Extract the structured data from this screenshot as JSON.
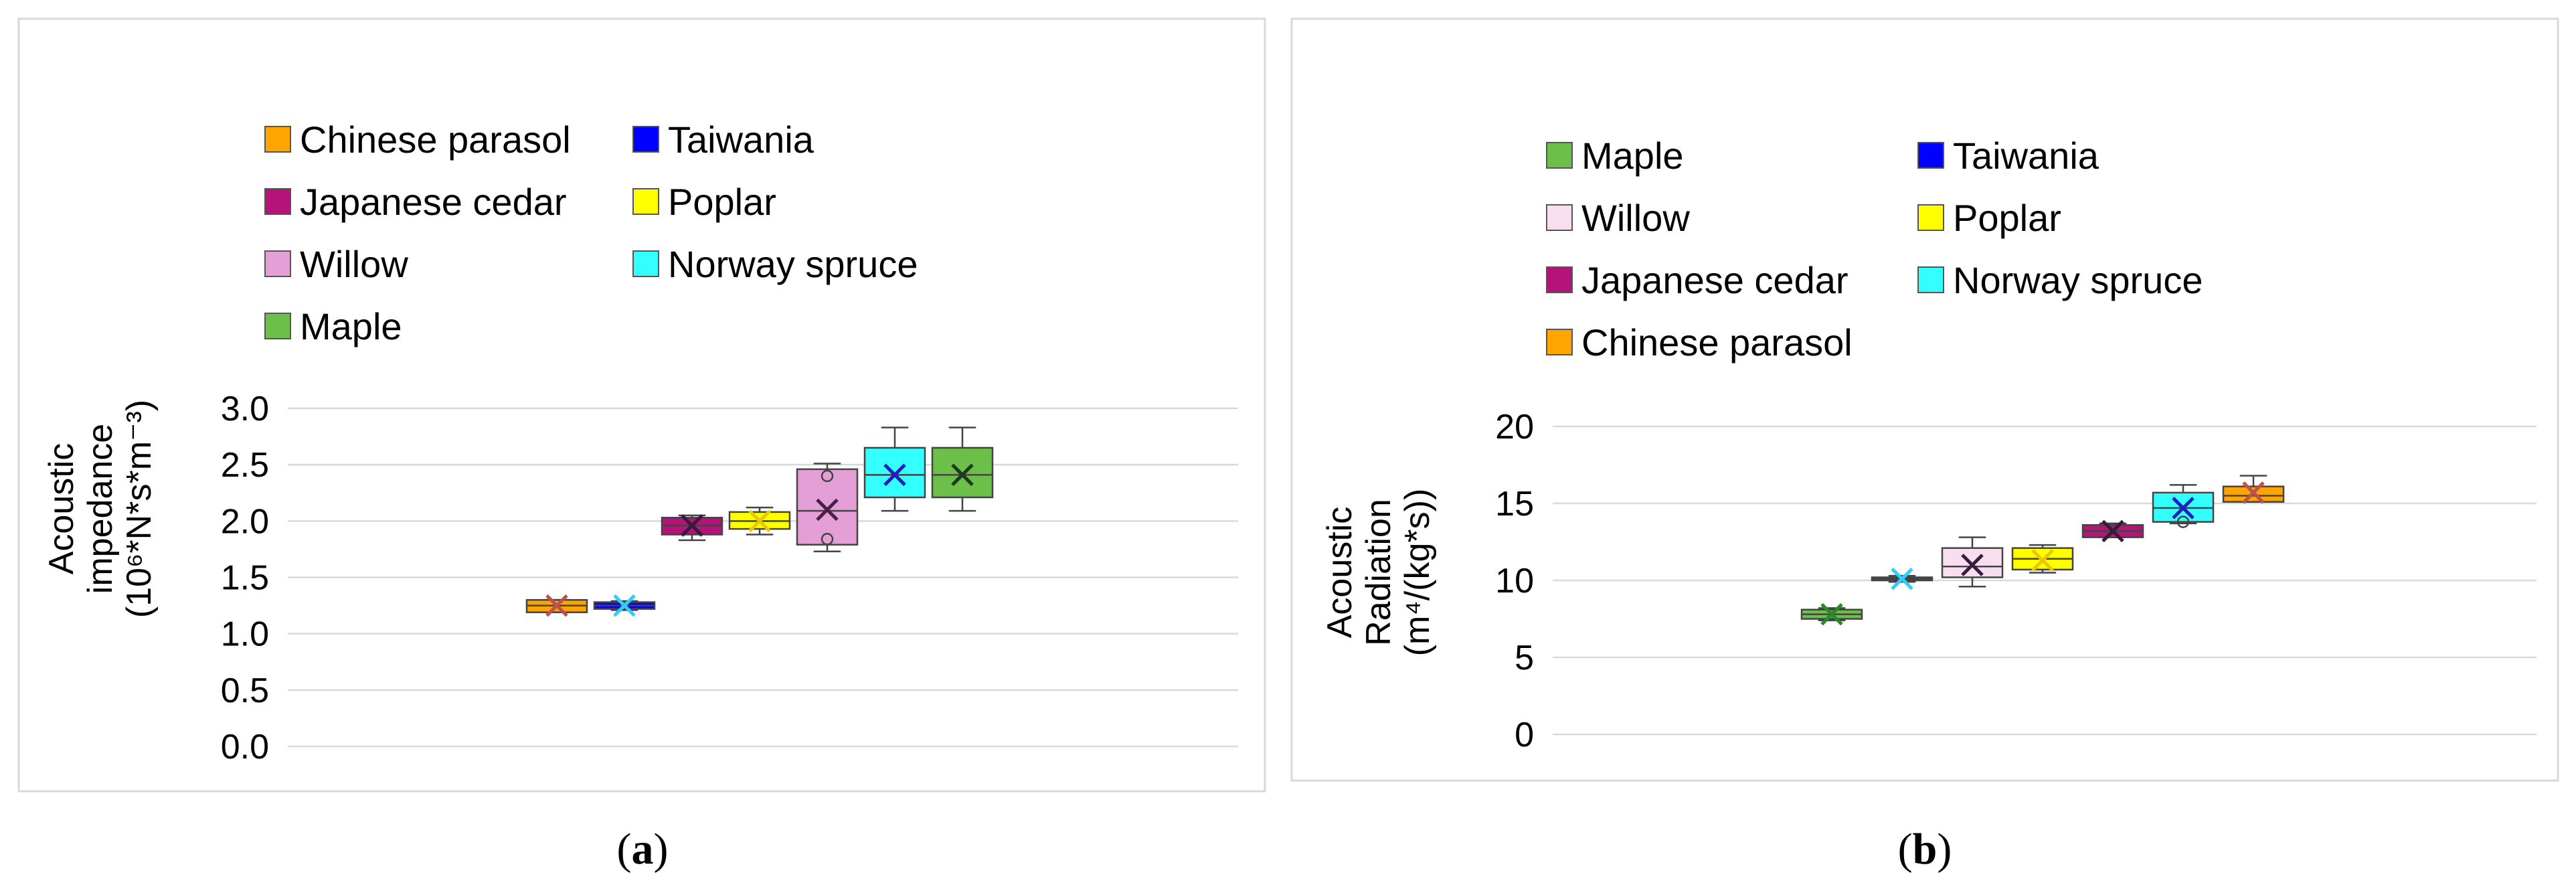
{
  "chart_data": [
    {
      "type": "box",
      "caption": "a",
      "ylabel": [
        "Acoustic",
        "impedance",
        "(10⁶*N*s*m⁻³)"
      ],
      "ylim": [
        0.0,
        3.0
      ],
      "yticks": [
        "0.0",
        "0.5",
        "1.0",
        "1.5",
        "2.0",
        "2.5",
        "3.0"
      ],
      "grid": true,
      "legend_position": "top",
      "legend": [
        {
          "name": "Chinese parasol",
          "color": "#ffa500"
        },
        {
          "name": "Taiwania",
          "color": "#0000ff"
        },
        {
          "name": "Japanese cedar",
          "color": "#b5127a"
        },
        {
          "name": "Poplar",
          "color": "#ffff00"
        },
        {
          "name": "Willow",
          "color": "#e39fd6"
        },
        {
          "name": "Norway spruce",
          "color": "#33ffff"
        },
        {
          "name": "Maple",
          "color": "#6cc04a"
        }
      ],
      "series": [
        {
          "name": "Chinese parasol",
          "color": "#ffa500",
          "mark": "#c0504d",
          "min": 1.19,
          "q1": 1.19,
          "median": 1.25,
          "q3": 1.3,
          "max": 1.3,
          "mean": 1.25,
          "outliers": []
        },
        {
          "name": "Taiwania",
          "color": "#0000ff",
          "mark": "#33ccff",
          "min": 1.21,
          "q1": 1.22,
          "median": 1.25,
          "q3": 1.28,
          "max": 1.29,
          "mean": 1.25,
          "outliers": []
        },
        {
          "name": "Japanese cedar",
          "color": "#b5127a",
          "mark": "#3a1a3a",
          "min": 1.83,
          "q1": 1.88,
          "median": 1.96,
          "q3": 2.03,
          "max": 2.05,
          "mean": 1.96,
          "outliers": []
        },
        {
          "name": "Poplar",
          "color": "#ffff00",
          "mark": "#e8c800",
          "min": 1.88,
          "q1": 1.93,
          "median": 2.0,
          "q3": 2.08,
          "max": 2.12,
          "mean": 2.0,
          "outliers": []
        },
        {
          "name": "Willow",
          "color": "#e39fd6",
          "mark": "#4a2048",
          "min": 1.73,
          "q1": 1.79,
          "median": 2.09,
          "q3": 2.46,
          "max": 2.51,
          "mean": 2.1,
          "outliers": [
            2.4,
            1.84
          ]
        },
        {
          "name": "Norway spruce",
          "color": "#33ffff",
          "mark": "#1f1fbf",
          "min": 2.09,
          "q1": 2.21,
          "median": 2.41,
          "q3": 2.65,
          "max": 2.83,
          "mean": 2.41,
          "outliers": []
        },
        {
          "name": "Maple",
          "color": "#6cc04a",
          "mark": "#1e3a1e",
          "min": 2.09,
          "q1": 2.21,
          "median": 2.41,
          "q3": 2.65,
          "max": 2.83,
          "mean": 2.41,
          "outliers": []
        }
      ]
    },
    {
      "type": "box",
      "caption": "b",
      "ylabel": [
        "Acoustic",
        "Radiation",
        "(m⁴/(kg*s))"
      ],
      "ylim": [
        0,
        20
      ],
      "yticks": [
        "0",
        "5",
        "10",
        "15",
        "20"
      ],
      "grid": true,
      "legend_position": "top",
      "legend": [
        {
          "name": "Maple",
          "color": "#6cc04a"
        },
        {
          "name": "Taiwania",
          "color": "#0000ff"
        },
        {
          "name": "Willow",
          "color": "#f8dff0"
        },
        {
          "name": "Poplar",
          "color": "#ffff00"
        },
        {
          "name": "Japanese cedar",
          "color": "#b5127a"
        },
        {
          "name": "Norway spruce",
          "color": "#33ffff"
        },
        {
          "name": "Chinese parasol",
          "color": "#ffa500"
        }
      ],
      "series": [
        {
          "name": "Maple",
          "color": "#6cc04a",
          "mark": "#2a8a2a",
          "min": 7.4,
          "q1": 7.5,
          "median": 7.8,
          "q3": 8.1,
          "max": 8.2,
          "mean": 7.8,
          "outliers": []
        },
        {
          "name": "Taiwania",
          "color": "#0000ff",
          "mark": "#33ccff",
          "min": 9.9,
          "q1": 10.0,
          "median": 10.1,
          "q3": 10.2,
          "max": 10.3,
          "mean": 10.1,
          "outliers": []
        },
        {
          "name": "Willow",
          "color": "#f8dff0",
          "mark": "#3a1a3a",
          "min": 9.6,
          "q1": 10.2,
          "median": 10.9,
          "q3": 12.1,
          "max": 12.8,
          "mean": 11.0,
          "outliers": []
        },
        {
          "name": "Poplar",
          "color": "#ffff00",
          "mark": "#e8c800",
          "min": 10.5,
          "q1": 10.7,
          "median": 11.4,
          "q3": 12.1,
          "max": 12.3,
          "mean": 11.3,
          "outliers": []
        },
        {
          "name": "Japanese cedar",
          "color": "#b5127a",
          "mark": "#3a1a3a",
          "min": 12.8,
          "q1": 12.8,
          "median": 13.2,
          "q3": 13.6,
          "max": 13.7,
          "mean": 13.2,
          "outliers": []
        },
        {
          "name": "Norway spruce",
          "color": "#33ffff",
          "mark": "#1f1fbf",
          "min": 13.7,
          "q1": 13.8,
          "median": 14.7,
          "q3": 15.7,
          "max": 16.2,
          "mean": 14.7,
          "outliers": [
            13.8
          ]
        },
        {
          "name": "Chinese parasol",
          "color": "#ffa500",
          "mark": "#c0504d",
          "min": 15.1,
          "q1": 15.1,
          "median": 15.5,
          "q3": 16.1,
          "max": 16.8,
          "mean": 15.7,
          "outliers": []
        }
      ]
    }
  ]
}
